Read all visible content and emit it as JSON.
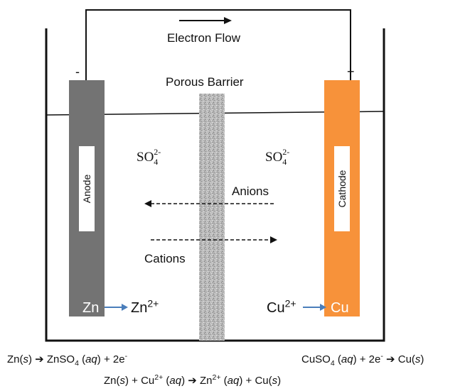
{
  "labels": {
    "electron_flow": "Electron Flow",
    "porous_barrier": "Porous Barrier",
    "minus": "-",
    "plus": "+",
    "anode": "Anode",
    "cathode": "Cathode",
    "anions": "Anions",
    "cations": "Cations",
    "sulfate_base": "SO",
    "sulfate_sub": "4",
    "sulfate_sup": "2-"
  },
  "electrodes": {
    "anode_metal": "Zn",
    "cathode_metal": "Cu",
    "anode_ion_base": "Zn",
    "anode_ion_charge": "2+",
    "cathode_ion_base": "Cu",
    "cathode_ion_charge": "2+"
  },
  "equations": {
    "left": {
      "a": "Zn(",
      "b": "s",
      "c": ") ➔ ZnSO",
      "d": "4",
      "e": " (",
      "f": "aq",
      "g": ") + 2e",
      "h": "-"
    },
    "right": {
      "a": "CuSO",
      "b": "4",
      "c": " (",
      "d": "aq",
      "e": ") + 2e",
      "f": "-",
      "g": " ➔ Cu(",
      "h": "s",
      "i": ")"
    },
    "overall": {
      "a": "Zn(",
      "b": "s",
      "c": ") + Cu",
      "d": "2+",
      "e": " (",
      "f": "aq",
      "g": ") ➔ Zn",
      "h": "2+",
      "i": " (",
      "j": "aq",
      "k": ") + Cu(",
      "l": "s",
      "m": ")"
    }
  },
  "colors": {
    "anode": "#737373",
    "cathode": "#f7923a",
    "ion_arrow": "#4a7ebb",
    "wire": "#111111"
  }
}
